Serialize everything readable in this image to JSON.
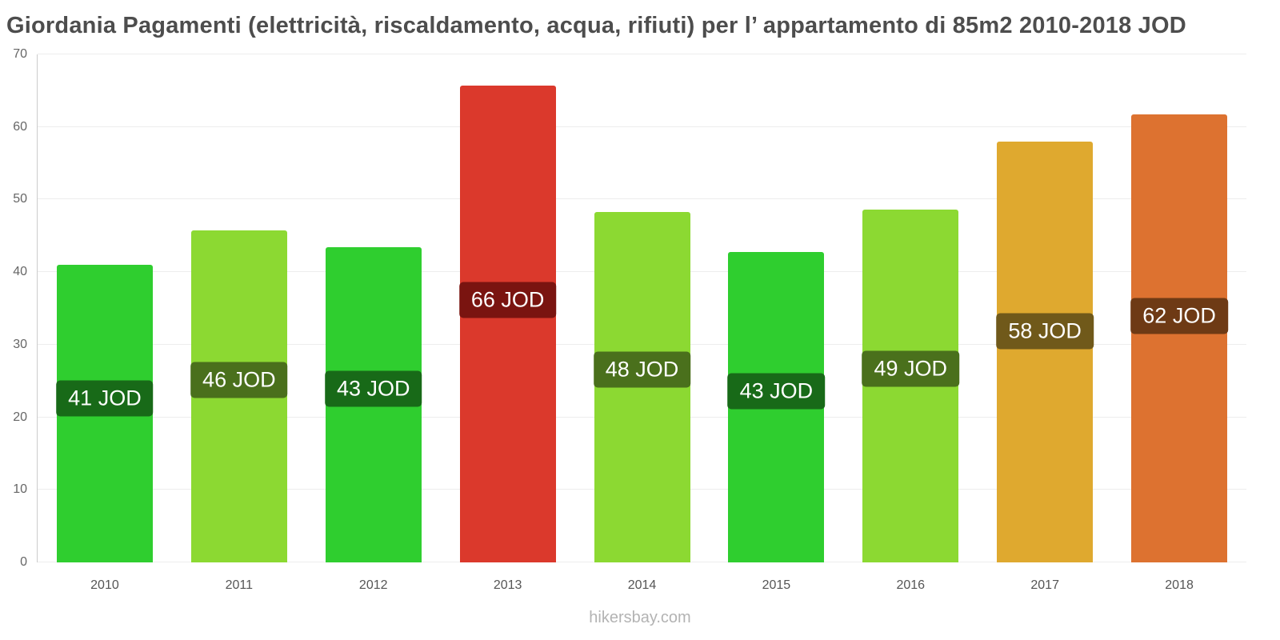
{
  "title": "Giordania Pagamenti (elettricità, riscaldamento, acqua, rifiuti) per l’ appartamento di 85m2 2010-2018 JOD",
  "footer": "hikersbay.com",
  "chart_data": {
    "type": "bar",
    "title": "Giordania Pagamenti (elettricità, riscaldamento, acqua, rifiuti) per l’ appartamento di 85m2 2010-2018 JOD",
    "xlabel": "",
    "ylabel": "",
    "unit": "JOD",
    "categories": [
      "2010",
      "2011",
      "2012",
      "2013",
      "2014",
      "2015",
      "2016",
      "2017",
      "2018"
    ],
    "values": [
      41,
      45.8,
      43.4,
      65.7,
      48.3,
      42.8,
      48.6,
      58,
      61.7
    ],
    "labels": [
      "41 JOD",
      "46 JOD",
      "43 JOD",
      "66 JOD",
      "48 JOD",
      "43 JOD",
      "49 JOD",
      "58 JOD",
      "62 JOD"
    ],
    "bar_colors": [
      "#2fce2f",
      "#8cd932",
      "#2fce2f",
      "#db392c",
      "#8cd932",
      "#2fce2f",
      "#8cd932",
      "#dfa92f",
      "#dd7230"
    ],
    "label_bg_colors": [
      "#186a18",
      "#4a701c",
      "#186a18",
      "#7a1410",
      "#4a701c",
      "#186a18",
      "#4a701c",
      "#70591a",
      "#6e3a15"
    ],
    "ylim": [
      0,
      70
    ],
    "yticks": [
      0,
      10,
      20,
      30,
      40,
      50,
      60,
      70
    ],
    "grid": true,
    "legend": false
  }
}
